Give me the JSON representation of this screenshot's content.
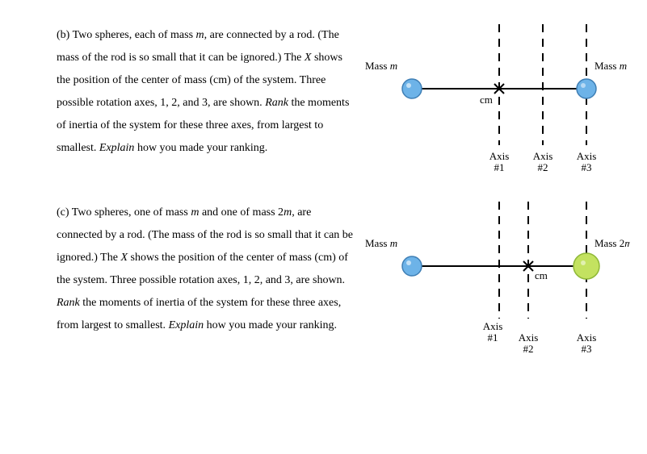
{
  "partB": {
    "text": "(b) Two spheres, each of mass <i>m</i>, are connected by a rod. (The mass of the rod is so small that it can be ignored.) The <i>X</i> shows the position of the center of mass (cm) of the system. Three possible rotation axes, 1, 2, and 3, are shown. <i>Rank</i> the moments of inertia of the system for these three axes, from largest to smallest. <i>Explain</i> how you made your ranking.",
    "figure": {
      "leftMassLabel": "Mass m",
      "rightMassLabel": "Mass m",
      "cmLabel": "cm",
      "axisLabels": [
        "Axis\n#1",
        "Axis\n#2",
        "Axis\n#3"
      ],
      "rodY": 110,
      "leftMassX": 60,
      "rightMassX": 276,
      "cmX": 168,
      "axisX": [
        168,
        222,
        276
      ],
      "dashTop": 30,
      "dashBottom": 180,
      "massRadius": 12,
      "leftMassFill": "#6db3e8",
      "leftMassStroke": "#3f7fb5",
      "rightMassFill": "#6db3e8",
      "rightMassStroke": "#3f7fb5",
      "rodColor": "#000000",
      "dashColor": "#000000",
      "dashPattern": "10,8",
      "dashWidth": 2
    }
  },
  "partC": {
    "text": "(c) Two spheres, one of mass <i>m</i> and one of mass 2<i>m</i>, are connected by a rod. (The mass of the rod is so small that it can be ignored.) The <i>X</i> shows the position of the center of mass (cm) of the system. Three possible rotation axes, 1, 2, and 3, are shown. <i>Rank</i> the moments of inertia of the system for these three axes, from largest to smallest. <i>Explain</i> how you made your ranking.",
    "figure": {
      "leftMassLabel": "Mass m",
      "rightMassLabel": "Mass 2m",
      "cmLabel": "cm",
      "axisLabels": [
        "Axis\n#1",
        "Axis\n#2",
        "Axis\n#3"
      ],
      "rodY": 110,
      "leftMassX": 60,
      "rightMassX": 276,
      "cmX": 204,
      "axisX": [
        168,
        204,
        276
      ],
      "dashTop": 30,
      "dashBottom": 175,
      "massRadius": 12,
      "rightMassRadius": 16,
      "leftMassFill": "#6db3e8",
      "leftMassStroke": "#3f7fb5",
      "rightMassFill": "#c3e260",
      "rightMassStroke": "#8fb837",
      "rodColor": "#000000",
      "dashColor": "#000000",
      "dashPattern": "10,8",
      "dashWidth": 2
    }
  }
}
